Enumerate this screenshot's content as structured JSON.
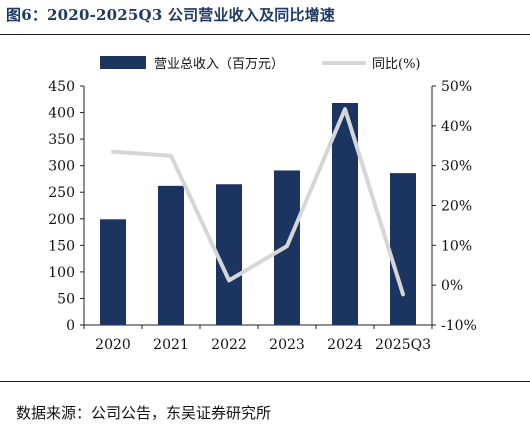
{
  "title": "图6：2020-2025Q3 公司营业收入及同比增速",
  "source": "数据来源：公司公告，东吴证券研究所",
  "chart_data": {
    "type": "bar+line",
    "categories": [
      "2020",
      "2021",
      "2022",
      "2023",
      "2024",
      "2025Q3"
    ],
    "series": [
      {
        "name": "营业总收入（百万元）",
        "type": "bar",
        "axis": "left",
        "color": "#1b3560",
        "values": [
          199,
          262,
          265,
          291,
          418,
          286
        ]
      },
      {
        "name": "同比(%)",
        "type": "line",
        "axis": "right",
        "color": "#d6d6d6",
        "values": [
          33.5,
          32.5,
          1.2,
          9.8,
          44.2,
          -2.3
        ]
      }
    ],
    "left_axis": {
      "ylim": [
        0,
        450
      ],
      "ticks": [
        "0",
        "50",
        "100",
        "150",
        "200",
        "250",
        "300",
        "350",
        "400",
        "450"
      ]
    },
    "right_axis": {
      "ylim": [
        -10,
        50
      ],
      "ticks": [
        "-10%",
        "0%",
        "10%",
        "20%",
        "30%",
        "40%",
        "50%"
      ]
    },
    "legend": "top",
    "grid": false
  }
}
